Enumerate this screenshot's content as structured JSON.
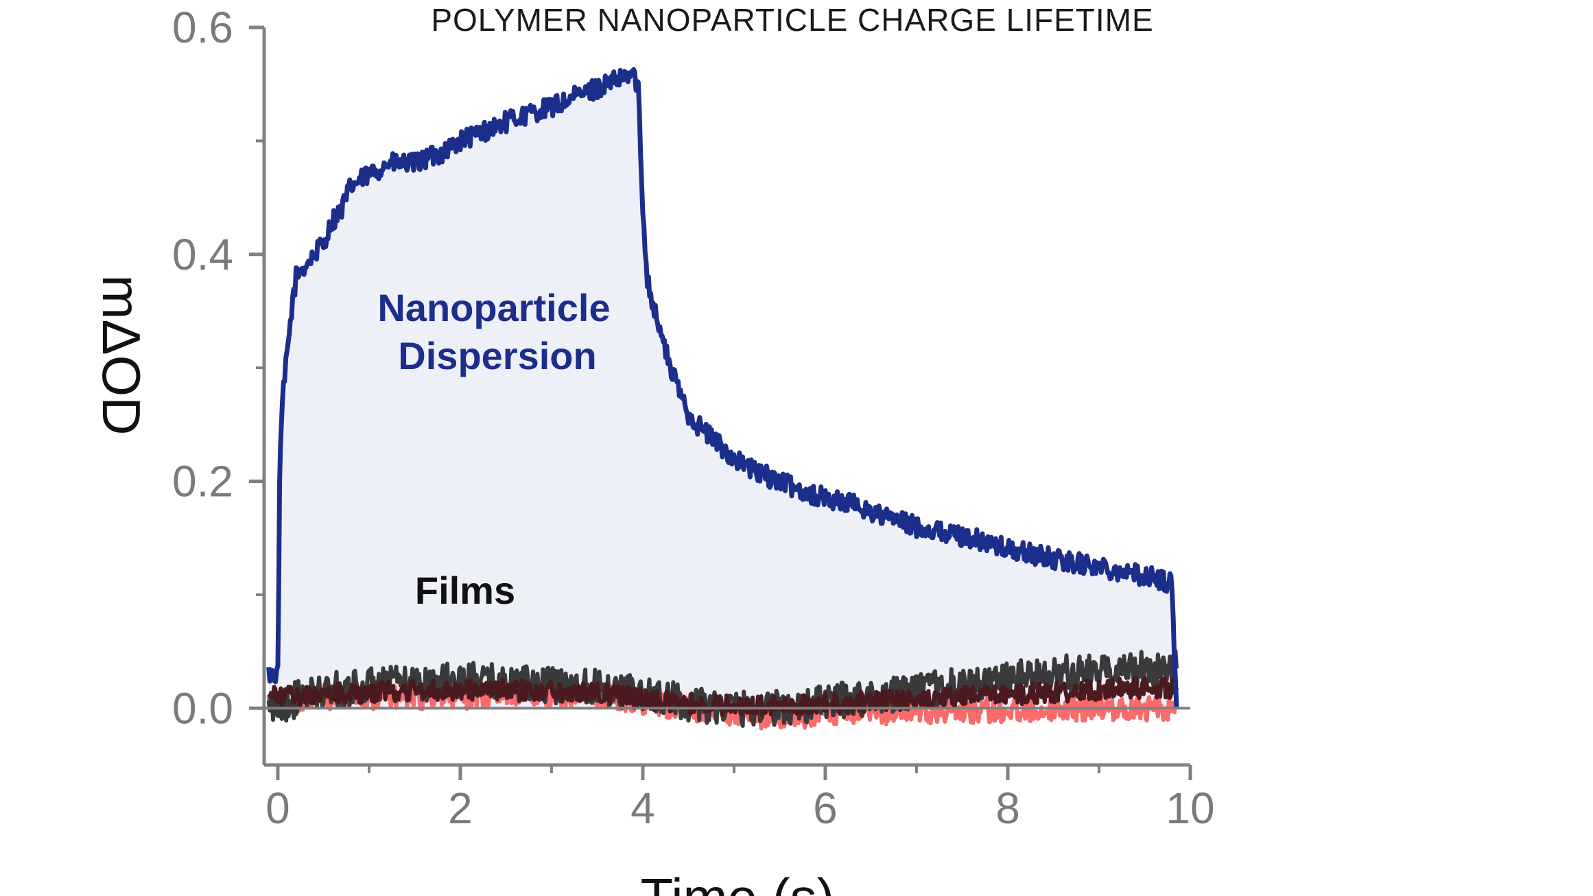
{
  "chart_data": {
    "type": "line",
    "title": "POLYMER NANOPARTICLE CHARGE LIFETIME",
    "xlabel": "Time (s)",
    "ylabel": "mΔOD",
    "xlim": [
      -0.15,
      10
    ],
    "ylim": [
      -0.05,
      0.6
    ],
    "x_ticks": [
      0,
      2,
      4,
      6,
      8,
      10
    ],
    "x_tick_labels": [
      "0",
      "2",
      "4",
      "6",
      "8",
      "10"
    ],
    "y_ticks": [
      0.0,
      0.2,
      0.4,
      0.6
    ],
    "y_tick_labels": [
      "0.0",
      "0.2",
      "0.4",
      "0.6"
    ],
    "grid": false,
    "legend": "none",
    "annotations": [
      {
        "text": "Nanoparticle",
        "color": "#1c2e8c"
      },
      {
        "text": "Dispersion",
        "color": "#1c2e8c"
      },
      {
        "text": "Films",
        "color": "#111111"
      }
    ],
    "series": [
      {
        "color": "#1c2e8c",
        "fill": "#eef0f8",
        "x": [
          -0.1,
          0.0,
          0.02,
          0.05,
          0.1,
          0.15,
          0.2,
          0.3,
          0.4,
          0.5,
          0.6,
          0.7,
          0.8,
          1.0,
          1.2,
          1.5,
          1.8,
          2.0,
          2.3,
          2.6,
          3.0,
          3.3,
          3.6,
          3.8,
          3.9,
          3.95,
          4.0,
          4.05,
          4.1,
          4.2,
          4.3,
          4.4,
          4.5,
          4.6,
          4.8,
          5.0,
          5.2,
          5.5,
          5.8,
          6.0,
          6.3,
          6.6,
          7.0,
          7.3,
          7.6,
          8.0,
          8.3,
          8.6,
          9.0,
          9.3,
          9.6,
          9.8,
          9.85
        ],
        "y": [
          0.03,
          0.03,
          0.2,
          0.27,
          0.31,
          0.35,
          0.38,
          0.39,
          0.4,
          0.41,
          0.43,
          0.44,
          0.46,
          0.47,
          0.48,
          0.48,
          0.49,
          0.5,
          0.51,
          0.52,
          0.53,
          0.54,
          0.55,
          0.555,
          0.56,
          0.545,
          0.44,
          0.38,
          0.36,
          0.33,
          0.3,
          0.28,
          0.26,
          0.25,
          0.235,
          0.22,
          0.21,
          0.2,
          0.19,
          0.185,
          0.18,
          0.17,
          0.16,
          0.155,
          0.15,
          0.14,
          0.135,
          0.13,
          0.125,
          0.12,
          0.115,
          0.11,
          0.0
        ]
      },
      {
        "color": "#fa6b6b",
        "x": [
          -0.1,
          0.5,
          1.0,
          1.5,
          2.0,
          2.5,
          3.0,
          3.5,
          4.0,
          4.5,
          5.0,
          5.5,
          6.0,
          6.5,
          7.0,
          7.5,
          8.0,
          8.5,
          9.0,
          9.5,
          9.85
        ],
        "y": [
          0.005,
          0.01,
          0.01,
          0.01,
          0.01,
          0.012,
          0.012,
          0.012,
          0.005,
          0.0,
          -0.005,
          -0.008,
          -0.005,
          -0.005,
          -0.003,
          -0.002,
          -0.002,
          0.0,
          0.0,
          0.0,
          0.0
        ]
      },
      {
        "color": "#3a3a3a",
        "x": [
          -0.1,
          0.5,
          1.0,
          1.5,
          2.0,
          2.5,
          3.0,
          3.5,
          4.0,
          4.5,
          5.0,
          5.5,
          6.0,
          6.5,
          7.0,
          7.5,
          8.0,
          8.5,
          9.0,
          9.5,
          9.85
        ],
        "y": [
          0.0,
          0.015,
          0.02,
          0.022,
          0.025,
          0.022,
          0.02,
          0.02,
          0.012,
          0.005,
          0.0,
          0.0,
          0.005,
          0.01,
          0.015,
          0.02,
          0.025,
          0.03,
          0.032,
          0.035,
          0.035
        ]
      },
      {
        "color": "#4a1a1e",
        "x": [
          -0.1,
          0.5,
          1.0,
          1.5,
          2.0,
          2.5,
          3.0,
          3.5,
          4.0,
          4.5,
          5.0,
          5.5,
          6.0,
          6.5,
          7.0,
          7.5,
          8.0,
          8.5,
          9.0,
          9.5,
          9.85
        ],
        "y": [
          0.01,
          0.012,
          0.014,
          0.016,
          0.016,
          0.016,
          0.016,
          0.014,
          0.008,
          0.004,
          0.002,
          0.002,
          0.004,
          0.006,
          0.008,
          0.01,
          0.012,
          0.014,
          0.016,
          0.018,
          0.018
        ]
      }
    ]
  }
}
